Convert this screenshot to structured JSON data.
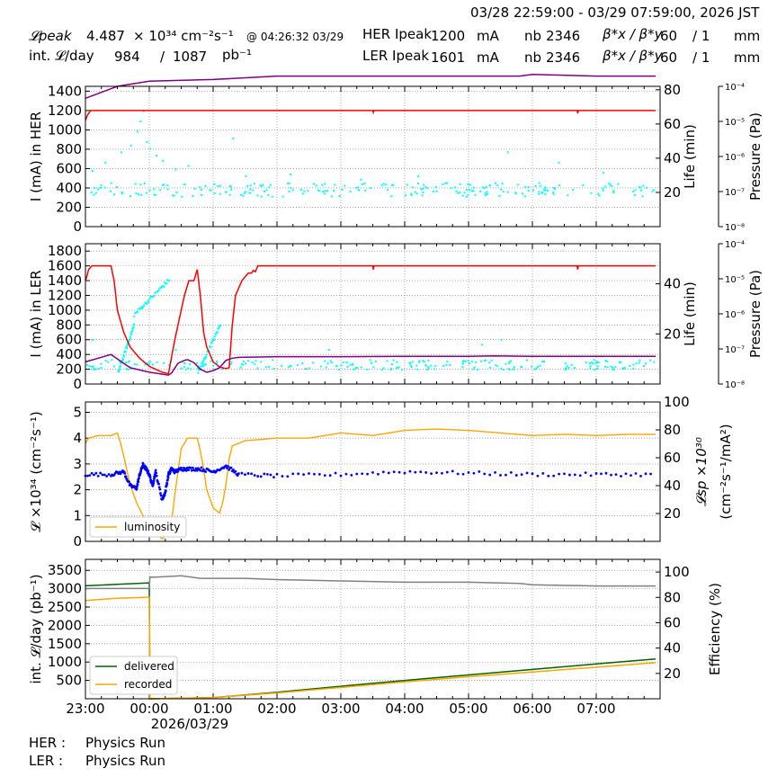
{
  "header": {
    "time_range": "03/28 22:59:00 - 03/29 07:59:00, 2026 JST",
    "row1": {
      "lumi_label": "𝓛peak",
      "lumi_value": "4.487",
      "lumi_unit": "× 10³⁴ cm⁻²s⁻¹",
      "at_time": "@ 04:26:32 03/29",
      "her_label": "HER Ipeak",
      "her_value": "1200",
      "her_unit": "mA",
      "nb_label": "nb",
      "nb_value": "2346",
      "beta_label": "β*x / β*y",
      "beta_x": "60",
      "beta_y": "/ 1",
      "beta_unit": "mm"
    },
    "row2": {
      "int_label": "int. 𝓛/day",
      "int_value": "984",
      "int_slash": "/",
      "int_total": "1087",
      "int_unit": "pb⁻¹",
      "ler_label": "LER Ipeak",
      "ler_value": "1601",
      "ler_unit": "mA",
      "nb_label": "nb",
      "nb_value": "2346",
      "beta_label": "β*x / β*y",
      "beta_x": "60",
      "beta_y": "/ 1",
      "beta_unit": "mm"
    }
  },
  "footer": {
    "her_label": "HER :",
    "her_status": "Physics Run",
    "ler_label": "LER :",
    "ler_status": "Physics Run"
  },
  "colors": {
    "current": "#ff0000",
    "life": "#00ffff",
    "pressure": "#800080",
    "luminosity": "#ffa500",
    "specific": "#0000ff",
    "delivered": "#006400",
    "recorded": "#ffa500",
    "efficiency": "#808080"
  },
  "chart_data": [
    {
      "type": "line",
      "id": "her",
      "ylabel": "I (mA) in HER",
      "ylabel2": "Life (min)",
      "ylabel3": "Pressure (Pa)",
      "ylim": [
        0,
        1450
      ],
      "yticks": [
        0,
        200,
        400,
        600,
        800,
        1000,
        1200,
        1400
      ],
      "ylim2": [
        0,
        82
      ],
      "yticks2": [
        20,
        40,
        60,
        80
      ],
      "pressure_ticks": [
        "10⁻⁴",
        "10⁻⁵",
        "10⁻⁶",
        "10⁻⁷",
        "10⁻⁸"
      ],
      "xlim": [
        -1,
        8
      ],
      "series": [
        {
          "role": "current",
          "x": [
            -1,
            -0.97,
            -0.92,
            0,
            3.5,
            3.51,
            3.52,
            6.7,
            6.71,
            6.72,
            7.93
          ],
          "y": [
            1100,
            1150,
            1200,
            1200,
            1200,
            1180,
            1200,
            1200,
            1170,
            1200,
            1200
          ]
        },
        {
          "role": "pressure",
          "x": [
            -1,
            -0.5,
            0,
            1,
            2,
            3,
            4,
            5,
            5.8,
            6,
            7,
            7.93
          ],
          "y": [
            75,
            82,
            85,
            86,
            88,
            88,
            88,
            88,
            88,
            89,
            88,
            88
          ]
        }
      ],
      "scatter_life": {
        "band_center": 22,
        "band_spread": 4,
        "outliers": [
          [
            -0.9,
            33
          ],
          [
            -0.7,
            38
          ],
          [
            -0.45,
            44
          ],
          [
            -0.3,
            48
          ],
          [
            -0.2,
            56
          ],
          [
            -0.15,
            62
          ],
          [
            -0.1,
            68
          ],
          [
            -0.05,
            50
          ],
          [
            0.0,
            46
          ],
          [
            0.1,
            42
          ],
          [
            0.2,
            39
          ],
          [
            0.4,
            34
          ],
          [
            0.6,
            36
          ],
          [
            1.3,
            52
          ],
          [
            1.5,
            30
          ],
          [
            2.2,
            31
          ],
          [
            3.3,
            28
          ],
          [
            4.2,
            30
          ],
          [
            5.6,
            44
          ],
          [
            6.4,
            38
          ],
          [
            7.1,
            32
          ]
        ]
      }
    },
    {
      "type": "line",
      "id": "ler",
      "ylabel": "I (mA) in LER",
      "ylabel2": "Life (min)",
      "ylabel3": "Pressure (Pa)",
      "ylim": [
        0,
        1900
      ],
      "yticks": [
        0,
        200,
        400,
        600,
        800,
        1000,
        1200,
        1400,
        1600,
        1800
      ],
      "ylim2": [
        0,
        56
      ],
      "yticks2": [
        20,
        40
      ],
      "pressure_ticks": [
        "10⁻⁴",
        "10⁻⁵",
        "10⁻⁶",
        "10⁻⁷",
        "10⁻⁸"
      ],
      "xlim": [
        -1,
        8
      ],
      "series": [
        {
          "role": "current",
          "x": [
            -1,
            -0.98,
            -0.95,
            -0.9,
            -0.6,
            -0.55,
            -0.5,
            -0.4,
            -0.3,
            -0.15,
            0.0,
            0.2,
            0.3,
            0.4,
            0.5,
            0.55,
            0.62,
            0.7,
            0.75,
            0.8,
            0.85,
            0.9,
            0.95,
            1.0,
            1.1,
            1.2,
            1.25,
            1.3,
            1.35,
            1.4,
            1.45,
            1.5,
            1.55,
            1.6,
            1.63,
            1.66,
            1.7,
            1.75,
            3.5,
            3.51,
            3.52,
            6.7,
            6.71,
            6.72,
            7.93
          ],
          "y": [
            1400,
            1450,
            1550,
            1600,
            1600,
            1400,
            1000,
            700,
            500,
            350,
            240,
            160,
            140,
            600,
            1000,
            1200,
            1400,
            1400,
            1550,
            1200,
            700,
            500,
            400,
            300,
            230,
            210,
            220,
            800,
            1200,
            1300,
            1400,
            1450,
            1500,
            1500,
            1540,
            1520,
            1600,
            1600,
            1600,
            1550,
            1600,
            1600,
            1550,
            1600,
            1600
          ]
        },
        {
          "role": "pressure",
          "x": [
            -1,
            -0.8,
            -0.6,
            -0.3,
            0.0,
            0.3,
            0.35,
            0.45,
            0.55,
            0.6,
            0.7,
            0.8,
            0.9,
            1.0,
            1.1,
            1.2,
            1.3,
            1.4,
            2,
            3,
            4,
            5,
            5.4,
            6,
            7,
            7.93
          ],
          "y": [
            300,
            350,
            400,
            220,
            160,
            120,
            150,
            280,
            320,
            330,
            290,
            200,
            160,
            180,
            220,
            320,
            350,
            360,
            370,
            370,
            375,
            375,
            380,
            375,
            375,
            375
          ]
        }
      ],
      "scatter_life": {
        "band_center": 8,
        "band_spread": 2,
        "ramps": [
          [
            -0.5,
            5,
            -0.25,
            24
          ],
          [
            -0.25,
            28,
            0.3,
            42
          ],
          [
            0.75,
            5,
            1.1,
            24
          ]
        ],
        "outliers": [
          [
            -0.9,
            18
          ],
          [
            -0.6,
            10
          ],
          [
            0.4,
            14
          ],
          [
            2.8,
            14
          ],
          [
            5.2,
            16
          ],
          [
            5.5,
            18
          ]
        ]
      }
    },
    {
      "type": "line",
      "id": "luminosity",
      "ylabel": "𝓛 ×10³⁴ (cm⁻²s⁻¹)",
      "ylabel2": "𝓛sp ×10³⁰",
      "ylabel2b": "(cm⁻²s⁻¹/mA²)",
      "legend": [
        "luminosity"
      ],
      "legend_loc": "lower left",
      "ylim": [
        0,
        5.4
      ],
      "yticks": [
        0,
        1,
        2,
        3,
        4,
        5
      ],
      "ylim2": [
        0,
        100
      ],
      "yticks2": [
        20,
        40,
        60,
        80,
        100
      ],
      "xlim": [
        -1,
        8
      ],
      "series": [
        {
          "name": "luminosity",
          "role": "luminosity",
          "x": [
            -1,
            -0.95,
            -0.8,
            -0.6,
            -0.5,
            -0.45,
            -0.4,
            -0.3,
            -0.2,
            -0.1,
            0.0,
            0.1,
            0.2,
            0.3,
            0.35,
            0.4,
            0.5,
            0.6,
            0.75,
            0.8,
            0.85,
            0.9,
            1.0,
            1.1,
            1.15,
            1.2,
            1.25,
            1.3,
            1.5,
            2,
            2.5,
            3,
            3.5,
            4,
            4.5,
            5,
            5.5,
            6,
            6.5,
            7,
            7.5,
            7.93
          ],
          "y": [
            3.8,
            4.0,
            4.1,
            4.1,
            4.2,
            3.8,
            3.3,
            2.2,
            1.5,
            1.0,
            0.6,
            0.3,
            0.1,
            0.3,
            0.8,
            1.8,
            3.6,
            4.0,
            4.0,
            3.5,
            2.8,
            2.0,
            1.3,
            1.1,
            1.5,
            2.2,
            3.2,
            3.7,
            3.9,
            4.0,
            4.0,
            4.2,
            4.1,
            4.3,
            4.35,
            4.3,
            4.2,
            4.1,
            4.15,
            4.1,
            4.15,
            4.15
          ]
        },
        {
          "role": "specific",
          "x": [
            -1,
            -0.6,
            -0.4,
            -0.3,
            -0.2,
            -0.15,
            -0.1,
            -0.05,
            0.0,
            0.05,
            0.1,
            0.2,
            0.25,
            0.3,
            0.35,
            0.4,
            0.5,
            0.6,
            0.8,
            1.0,
            1.2,
            1.4,
            2,
            3,
            4,
            5,
            6,
            7,
            7.93
          ],
          "y": [
            48,
            48,
            50,
            40,
            38,
            48,
            55,
            52,
            48,
            40,
            50,
            30,
            35,
            48,
            52,
            50,
            52,
            52,
            52,
            50,
            54,
            48,
            47,
            48,
            50,
            49,
            48,
            48,
            48
          ]
        }
      ]
    },
    {
      "type": "line",
      "id": "integrated",
      "ylabel": "int. 𝓛/day (pb⁻¹)",
      "ylabel2": "Efficiency (%)",
      "legend": [
        "delivered",
        "recorded"
      ],
      "legend_loc": "lower left",
      "ylim": [
        0,
        3800
      ],
      "yticks": [
        500,
        1000,
        1500,
        2000,
        2500,
        3000,
        3500
      ],
      "ylim2": [
        0,
        110
      ],
      "yticks2": [
        20,
        40,
        60,
        80,
        100
      ],
      "xlim": [
        -1,
        8
      ],
      "xticks": [
        "23:00",
        "00:00",
        "01:00",
        "02:00",
        "03:00",
        "04:00",
        "05:00",
        "06:00",
        "07:00"
      ],
      "xdate": "2026/03/29",
      "series": [
        {
          "name": "delivered",
          "role": "delivered",
          "x": [
            -1,
            -0.5,
            0.0,
            0.01,
            1,
            2,
            3,
            4,
            5,
            6,
            7,
            7.93
          ],
          "y": [
            3080,
            3120,
            3160,
            0,
            30,
            180,
            340,
            500,
            650,
            800,
            950,
            1087
          ]
        },
        {
          "name": "recorded",
          "role": "recorded",
          "x": [
            -1,
            -0.5,
            0.0,
            0.01,
            1,
            2,
            3,
            4,
            5,
            6,
            7,
            7.93
          ],
          "y": [
            2680,
            2740,
            2770,
            0,
            30,
            160,
            310,
            460,
            600,
            730,
            860,
            984
          ]
        },
        {
          "role": "efficiency",
          "x": [
            -1,
            0.0,
            0.01,
            0.1,
            0.5,
            0.8,
            1.5,
            2,
            3,
            4,
            5,
            5.8,
            6,
            7,
            7.93
          ],
          "y": [
            87,
            87,
            96,
            96,
            97,
            95,
            95,
            94,
            93,
            92,
            92,
            91,
            90,
            89,
            89
          ]
        }
      ]
    }
  ]
}
